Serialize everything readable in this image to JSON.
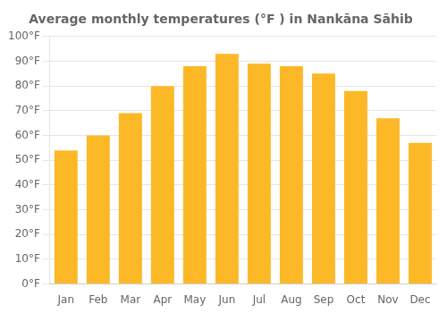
{
  "chart_data": {
    "type": "bar",
    "title": "Average monthly temperatures (°F ) in Nankāna Sāhib",
    "categories": [
      "Jan",
      "Feb",
      "Mar",
      "Apr",
      "May",
      "Jun",
      "Jul",
      "Aug",
      "Sep",
      "Oct",
      "Nov",
      "Dec"
    ],
    "values": [
      54,
      60,
      69,
      80,
      88,
      93,
      89,
      88,
      85,
      78,
      67,
      57
    ],
    "color": "#FDB827",
    "ylim": [
      0,
      100
    ],
    "yticks": [
      {
        "value": 0,
        "label": "0°F"
      },
      {
        "value": 10,
        "label": "10°F"
      },
      {
        "value": 20,
        "label": "20°F"
      },
      {
        "value": 30,
        "label": "30°F"
      },
      {
        "value": 40,
        "label": "40°F"
      },
      {
        "value": 50,
        "label": "50°F"
      },
      {
        "value": 60,
        "label": "60°F"
      },
      {
        "value": 70,
        "label": "70°F"
      },
      {
        "value": 80,
        "label": "80°F"
      },
      {
        "value": 90,
        "label": "90°F"
      },
      {
        "value": 100,
        "label": "100°F"
      }
    ],
    "grid": true
  }
}
